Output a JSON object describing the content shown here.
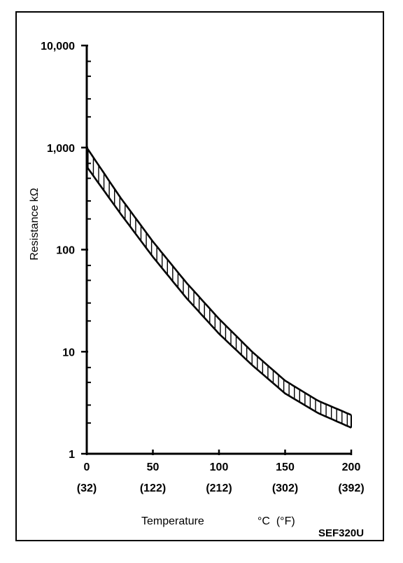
{
  "chart_data": {
    "type": "area",
    "title": "",
    "xlabel": "Temperature",
    "xlabel_unit": "°C  (°F)",
    "ylabel": "Resistance kΩ",
    "yscale": "log",
    "ylim": [
      1,
      10000
    ],
    "xlim": [
      0,
      200
    ],
    "y_ticks": [
      "1",
      "10",
      "100",
      "1,000",
      "10,000"
    ],
    "x_ticks": [
      {
        "c": "0",
        "f": "(32)"
      },
      {
        "c": "50",
        "f": "(122)"
      },
      {
        "c": "100",
        "f": "(212)"
      },
      {
        "c": "150",
        "f": "(302)"
      },
      {
        "c": "200",
        "f": "(392)"
      }
    ],
    "series": [
      {
        "x": [
          0,
          25,
          50,
          75,
          100,
          125,
          150,
          175,
          200
        ],
        "values": [
          1000,
          330,
          120,
          48,
          21,
          10,
          5.2,
          3.3,
          2.4
        ]
      },
      {
        "x": [
          0,
          25,
          50,
          75,
          100,
          125,
          150,
          175,
          200
        ],
        "values": [
          650,
          230,
          85,
          34,
          15,
          7.4,
          3.9,
          2.5,
          1.8
        ]
      }
    ],
    "band_fill": "hatched",
    "grid": false
  },
  "figure_code": "SEF320U"
}
